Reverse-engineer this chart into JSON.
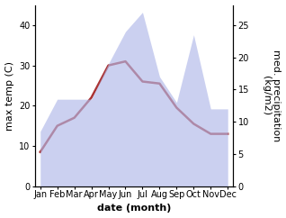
{
  "months": [
    "Jan",
    "Feb",
    "Mar",
    "Apr",
    "May",
    "Jun",
    "Jul",
    "Aug",
    "Sep",
    "Oct",
    "Nov",
    "Dec"
  ],
  "month_positions": [
    0,
    1,
    2,
    3,
    4,
    5,
    6,
    7,
    8,
    9,
    10,
    11
  ],
  "max_temp": [
    8.5,
    15.0,
    17.0,
    22.0,
    30.0,
    31.0,
    26.0,
    25.5,
    19.5,
    15.5,
    13.0,
    13.0
  ],
  "precipitation": [
    8.5,
    13.5,
    13.5,
    13.5,
    19.0,
    24.0,
    27.0,
    17.0,
    13.0,
    23.5,
    12.0,
    12.0
  ],
  "temp_ylim": [
    0,
    45
  ],
  "precip_ylim": [
    0,
    28.125
  ],
  "temp_yticks": [
    0,
    10,
    20,
    30,
    40
  ],
  "precip_yticks": [
    0,
    5,
    10,
    15,
    20,
    25
  ],
  "fill_color": "#b0b8e8",
  "fill_alpha": 0.65,
  "line_color": "#aa3333",
  "line_width": 1.8,
  "xlabel": "date (month)",
  "ylabel_left": "max temp (C)",
  "ylabel_right": "med. precipitation\n(kg/m2)",
  "bg_color": "#ffffff",
  "font_size_ticks": 7,
  "font_size_axis_labels": 8
}
